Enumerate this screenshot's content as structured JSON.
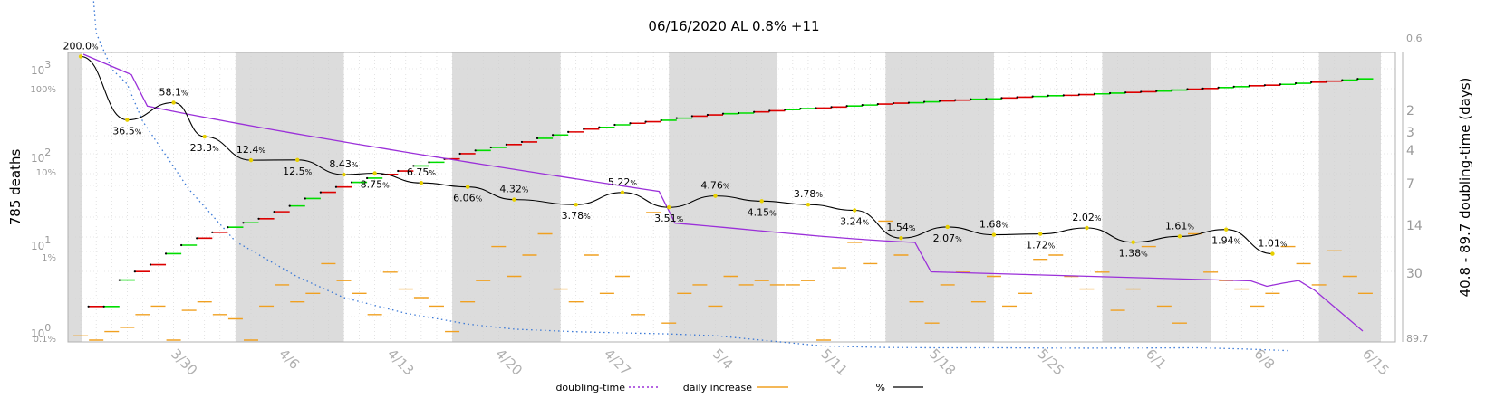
{
  "chart_data": {
    "type": "line",
    "title": "06/16/2020 AL 0.8% +11",
    "ylabel_left": "785 deaths",
    "ylabel_right": "40.8 - 89.7 doubling-time (days)",
    "left_axis_labels": [
      {
        "base": "10",
        "exp": "3",
        "log_value": 1000
      },
      {
        "base": "10",
        "exp": "2",
        "log_value": 100
      },
      {
        "base": "10",
        "exp": "1",
        "log_value": 10
      },
      {
        "base": "10",
        "exp": "0",
        "log_value": 1
      }
    ],
    "percent_axis_labels": [
      "100%",
      "10%",
      "1%",
      "0.1%"
    ],
    "right_axis": {
      "top_label": "0.6",
      "bottom_label": "89.7",
      "ticks": [
        "2",
        "3",
        "4",
        "7",
        "14",
        "30"
      ]
    },
    "x_tick_labels": [
      "3/30",
      "4/6",
      "4/13",
      "4/20",
      "4/27",
      "5/4",
      "5/11",
      "5/18",
      "5/25",
      "6/1",
      "6/8",
      "6/15"
    ],
    "x_range": [
      "3/23",
      "6/16"
    ],
    "weekend_bands": [
      [
        "4/3",
        "4/10"
      ],
      [
        "4/17",
        "4/24"
      ],
      [
        "5/1",
        "5/8"
      ],
      [
        "5/15",
        "5/22"
      ],
      [
        "5/29",
        "6/5"
      ],
      [
        "6/12",
        "6/16"
      ]
    ],
    "percent_annotations": [
      {
        "date": "3/24",
        "text": "200.0",
        "percent": 200.0
      },
      {
        "date": "3/27",
        "text": "36.5",
        "percent": 36.5
      },
      {
        "date": "3/30",
        "text": "58.1",
        "percent": 58.1
      },
      {
        "date": "4/1",
        "text": "23.3",
        "percent": 23.3
      },
      {
        "date": "4/4",
        "text": "12.4",
        "percent": 12.4
      },
      {
        "date": "4/7",
        "text": "12.5",
        "percent": 12.5
      },
      {
        "date": "4/10",
        "text": "8.43",
        "percent": 8.43
      },
      {
        "date": "4/12",
        "text": "8.75",
        "percent": 8.75
      },
      {
        "date": "4/15",
        "text": "6.75",
        "percent": 6.75
      },
      {
        "date": "4/18",
        "text": "6.06",
        "percent": 6.06
      },
      {
        "date": "4/21",
        "text": "4.32",
        "percent": 4.32
      },
      {
        "date": "4/25",
        "text": "3.78",
        "percent": 3.78
      },
      {
        "date": "4/28",
        "text": "5.22",
        "percent": 5.22
      },
      {
        "date": "5/1",
        "text": "3.51",
        "percent": 3.51
      },
      {
        "date": "5/4",
        "text": "4.76",
        "percent": 4.76
      },
      {
        "date": "5/7",
        "text": "4.15",
        "percent": 4.15
      },
      {
        "date": "5/10",
        "text": "3.78",
        "percent": 3.78
      },
      {
        "date": "5/13",
        "text": "3.24",
        "percent": 3.24
      },
      {
        "date": "5/16",
        "text": "1.54",
        "percent": 1.54
      },
      {
        "date": "5/19",
        "text": "2.07",
        "percent": 2.07
      },
      {
        "date": "5/22",
        "text": "1.68",
        "percent": 1.68
      },
      {
        "date": "5/25",
        "text": "1.72",
        "percent": 1.72
      },
      {
        "date": "5/28",
        "text": "2.02",
        "percent": 2.02
      },
      {
        "date": "5/31",
        "text": "1.38",
        "percent": 1.38
      },
      {
        "date": "6/3",
        "text": "1.61",
        "percent": 1.61
      },
      {
        "date": "6/6",
        "text": "1.94",
        "percent": 1.94
      },
      {
        "date": "6/9",
        "text": "1.01",
        "percent": 1.01
      }
    ],
    "series": [
      {
        "name": "doubling-time",
        "style": "dotted",
        "color": "#9b30d9",
        "points": [
          [
            "3/24",
            1.0
          ],
          [
            "3/25",
            1.6
          ],
          [
            "3/26",
            1.8
          ],
          [
            "3/27",
            1.9
          ],
          [
            "3/28",
            2.2
          ],
          [
            "3/31",
            3.1
          ],
          [
            "4/3",
            4.5
          ],
          [
            "4/7",
            6.5
          ],
          [
            "4/10",
            8.8
          ],
          [
            "4/14",
            12
          ],
          [
            "4/18",
            16
          ],
          [
            "4/21",
            19
          ],
          [
            "4/25",
            21
          ],
          [
            "4/28",
            22
          ],
          [
            "5/1",
            23
          ],
          [
            "5/4",
            25
          ],
          [
            "5/8",
            35
          ],
          [
            "5/11",
            50
          ],
          [
            "5/15",
            58
          ],
          [
            "5/18",
            60
          ],
          [
            "5/22",
            60
          ],
          [
            "5/25",
            62
          ],
          [
            "5/28",
            63
          ],
          [
            "5/31",
            62
          ],
          [
            "6/4",
            60
          ],
          [
            "6/7",
            69
          ],
          [
            "6/10",
            89.7
          ]
        ]
      },
      {
        "name": "daily increase",
        "style": "dash",
        "color": "#f0a020",
        "values": [
          1,
          0,
          2,
          3,
          6,
          8,
          0,
          7,
          9,
          6,
          5,
          0,
          8,
          13,
          9,
          11,
          18,
          14,
          11,
          6,
          16,
          12,
          10,
          8,
          2,
          9,
          14,
          22,
          15,
          20,
          25,
          12,
          9,
          20,
          11,
          15,
          6,
          30,
          4,
          11,
          13,
          8,
          15,
          13,
          14,
          13,
          13,
          14,
          0,
          17,
          23,
          18,
          28,
          20,
          9,
          4,
          13,
          16,
          9,
          15,
          8,
          11,
          19,
          20,
          15,
          12,
          16,
          7,
          12,
          22,
          8,
          4,
          25,
          16,
          14,
          12,
          8,
          11,
          22,
          18,
          13,
          21,
          15,
          11
        ]
      },
      {
        "name": "%",
        "style": "solid",
        "color": "#000000",
        "points": [
          [
            "3/24",
            200.0
          ],
          [
            "3/27",
            36.5
          ],
          [
            "3/30",
            58.1
          ],
          [
            "4/1",
            23.3
          ],
          [
            "4/4",
            12.4
          ],
          [
            "4/7",
            12.5
          ],
          [
            "4/10",
            8.43
          ],
          [
            "4/12",
            8.75
          ],
          [
            "4/15",
            6.75
          ],
          [
            "4/18",
            6.06
          ],
          [
            "4/21",
            4.32
          ],
          [
            "4/25",
            3.78
          ],
          [
            "4/28",
            5.22
          ],
          [
            "5/1",
            3.51
          ],
          [
            "5/4",
            4.76
          ],
          [
            "5/7",
            4.15
          ],
          [
            "5/10",
            3.78
          ],
          [
            "5/13",
            3.24
          ],
          [
            "5/16",
            1.54
          ],
          [
            "5/19",
            2.07
          ],
          [
            "5/22",
            1.68
          ],
          [
            "5/25",
            1.72
          ],
          [
            "5/28",
            2.02
          ],
          [
            "5/31",
            1.38
          ],
          [
            "6/3",
            1.61
          ],
          [
            "6/6",
            1.94
          ],
          [
            "6/9",
            1.01
          ]
        ]
      },
      {
        "name": "deaths",
        "style": "steps",
        "colors": {
          "up": "#00dd00",
          "down": "#dd0000"
        },
        "values": [
          1,
          2,
          2,
          4,
          5,
          6,
          8,
          10,
          12,
          14,
          16,
          18,
          20,
          24,
          28,
          34,
          40,
          46,
          52,
          58,
          64,
          70,
          80,
          88,
          96,
          110,
          120,
          130,
          140,
          150,
          165,
          180,
          195,
          210,
          220,
          235,
          245,
          255,
          265,
          280,
          295,
          305,
          315,
          320,
          330,
          340,
          350,
          360,
          365,
          375,
          385,
          395,
          405,
          415,
          420,
          430,
          440,
          450,
          460,
          465,
          475,
          485,
          495,
          505,
          510,
          520,
          530,
          540,
          550,
          560,
          570,
          585,
          600,
          610,
          625,
          640,
          655,
          665,
          680,
          700,
          720,
          740,
          760,
          785
        ]
      }
    ],
    "legend": [
      {
        "label": "doubling-time",
        "color": "#9b30d9",
        "style": "dotted"
      },
      {
        "label": "daily increase",
        "color": "#f0a020",
        "style": "dash"
      },
      {
        "label": "%",
        "color": "#000000",
        "style": "solid"
      }
    ],
    "legend_placement": "bottom",
    "grid": true
  }
}
